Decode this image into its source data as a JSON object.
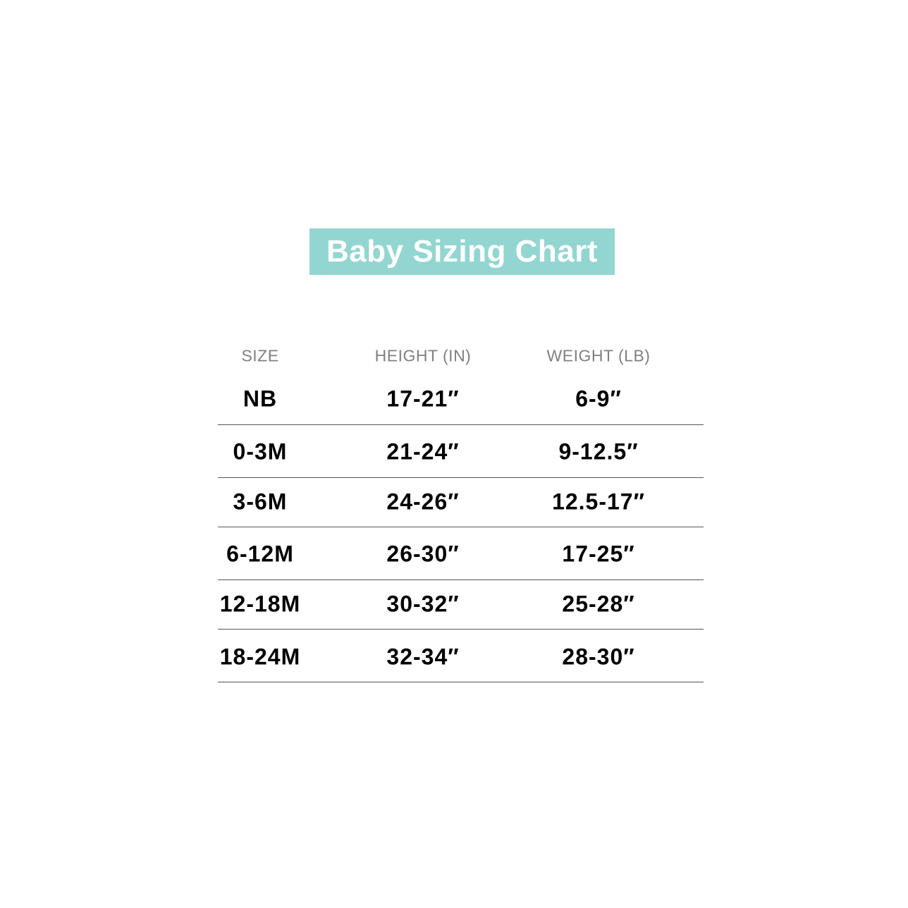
{
  "title": "Baby Sizing Chart",
  "colors": {
    "title_background": "#93d6d1",
    "header_text": "#808080",
    "value_text": "#000000"
  },
  "table": {
    "headers": [
      "SIZE",
      "HEIGHT (IN)",
      "WEIGHT (LB)"
    ],
    "rows": [
      [
        "NB",
        "17-21″",
        "6-9″"
      ],
      [
        "0-3M",
        "21-24″",
        "9-12.5″"
      ],
      [
        "3-6M",
        "24-26″",
        "12.5-17″"
      ],
      [
        "6-12M",
        "26-30″",
        "17-25″"
      ],
      [
        "12-18M",
        "30-32″",
        "25-28″"
      ],
      [
        "18-24M",
        "32-34″",
        "28-30″"
      ]
    ]
  }
}
